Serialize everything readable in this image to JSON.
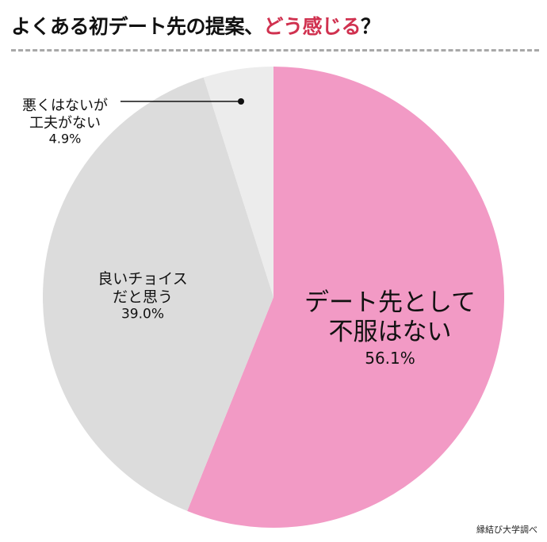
{
  "title": {
    "main": "よくある初デート先の提案、",
    "accent": "どう感じる",
    "end": "？",
    "accent_color": "#d0314f"
  },
  "source": "縁結び大学調べ",
  "chart_data": {
    "type": "pie",
    "title": "よくある初デート先の提案、どう感じる？",
    "start_angle": "12 o'clock",
    "direction": "clockwise",
    "slices": [
      {
        "label": [
          "デート先として",
          "不服はない"
        ],
        "value": 56.1,
        "value_label": "56.1%",
        "color": "#f29ac5"
      },
      {
        "label": [
          "良いチョイス",
          "だと思う"
        ],
        "value": 39.0,
        "value_label": "39.0%",
        "color": "#dcdcdc"
      },
      {
        "label": [
          "悪くはないが",
          "工夫がない"
        ],
        "value": 4.9,
        "value_label": "4.9%",
        "color": "#ececec"
      }
    ]
  }
}
